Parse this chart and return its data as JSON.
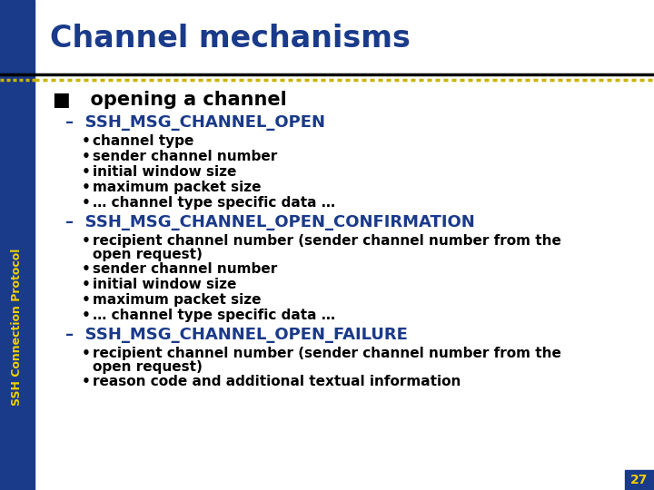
{
  "title": "Channel mechanisms",
  "title_color": "#1a3a8a",
  "bg_color": "#ffffff",
  "left_bar_color": "#1a3a8a",
  "left_bar_dots_color": "#c8b400",
  "slide_number": "27",
  "slide_number_bg": "#1a3a8a",
  "slide_number_color": "#f0d000",
  "sidebar_text": "SSH Connection Protocol",
  "sidebar_text_color": "#f0d000",
  "header_line_color": "#000000",
  "bullet1_text": "■   opening a channel",
  "dash1": "–  SSH_MSG_CHANNEL_OPEN",
  "items1": [
    "channel type",
    "sender channel number",
    "initial window size",
    "maximum packet size",
    "… channel type specific data …"
  ],
  "dash2": "–  SSH_MSG_CHANNEL_OPEN_CONFIRMATION",
  "items2_line1": "recipient channel number (sender channel number from the",
  "items2_line2": "open request)",
  "items2_rest": [
    "sender channel number",
    "initial window size",
    "maximum packet size",
    "… channel type specific data …"
  ],
  "dash3": "–  SSH_MSG_CHANNEL_OPEN_FAILURE",
  "items3_line1": "recipient channel number (sender channel number from the",
  "items3_line2": "open request)",
  "items3_last": "reason code and additional textual information",
  "text_color": "#000000",
  "dash_color": "#1a3a8a",
  "title_fontsize": 24,
  "bullet_fontsize": 15,
  "dash_fontsize": 13,
  "item_fontsize": 11,
  "sidebar_fontsize": 9
}
